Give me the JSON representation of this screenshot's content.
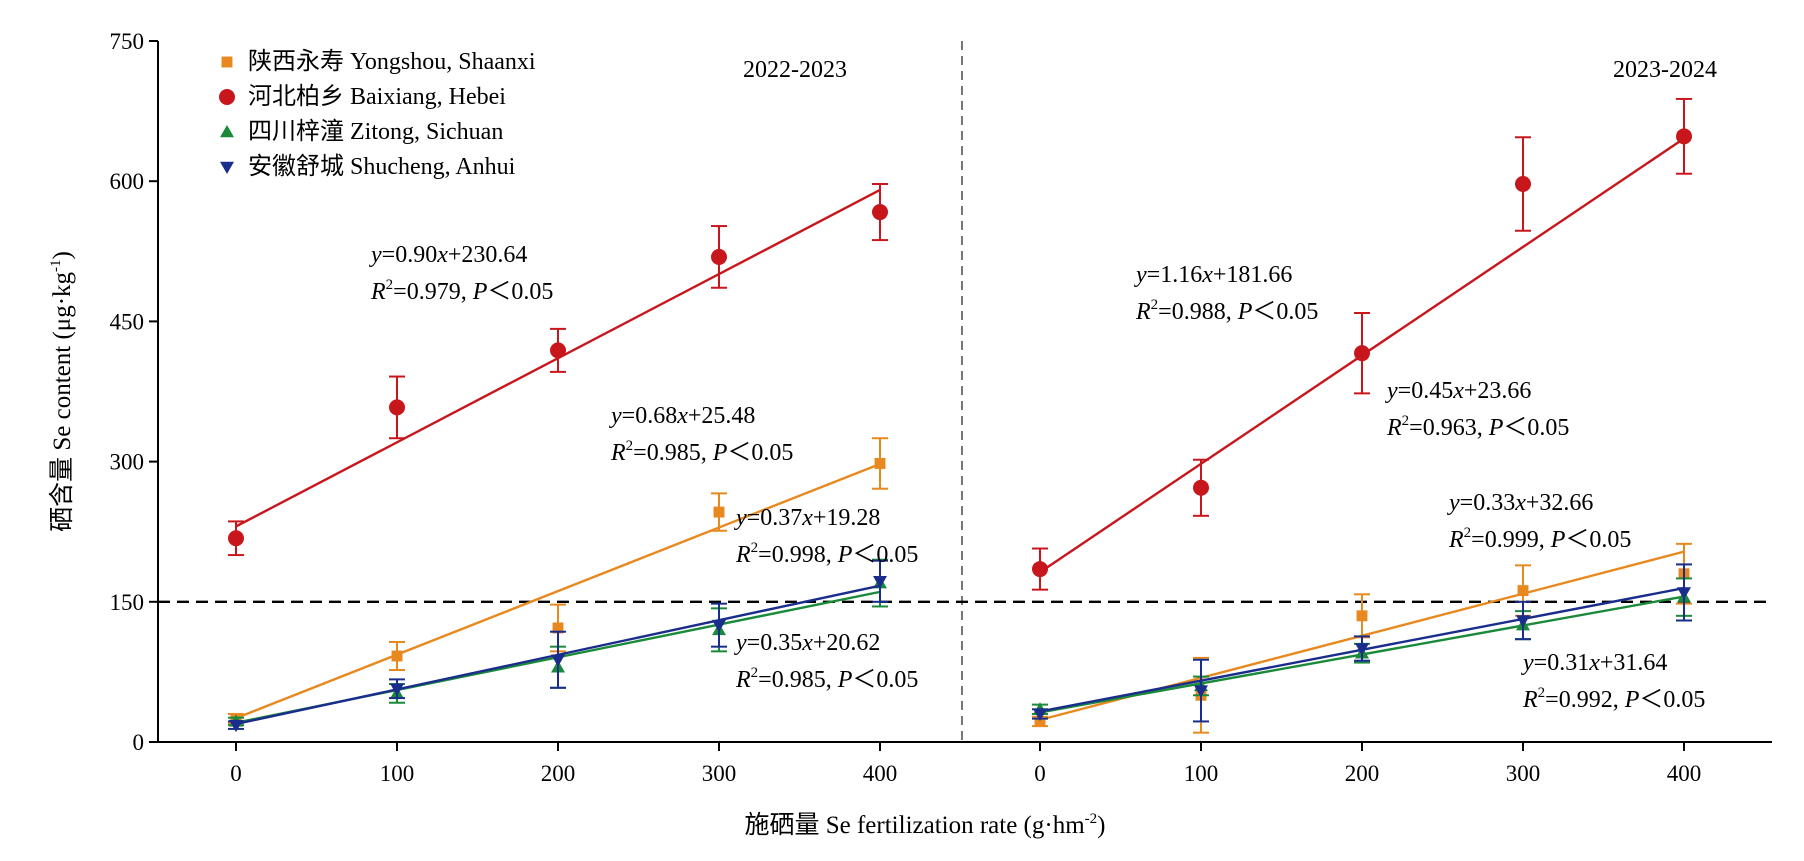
{
  "chart_data": {
    "type": "scatter",
    "ylabel": "硒含量 Se content (μg·kg",
    "ylabel_sup": "-1",
    "ylabel_close": ")",
    "xlabel": "施硒量 Se fertilization rate (g·hm",
    "xlabel_sup": "-2",
    "xlabel_close": ")",
    "ylim": [
      0,
      750
    ],
    "yticks": [
      0,
      150,
      300,
      450,
      600,
      750
    ],
    "xticks": [
      0,
      100,
      200,
      300,
      400
    ],
    "reference_line": 150,
    "legend_position": "top-left",
    "legend": [
      {
        "key": "yongshou",
        "label": "陕西永寿 Yongshou, Shaanxi",
        "marker": "square"
      },
      {
        "key": "baixiang",
        "label": "河北柏乡 Baixiang, Hebei",
        "marker": "circle"
      },
      {
        "key": "zitong",
        "label": "四川梓潼 Zitong, Sichuan",
        "marker": "triangle-up"
      },
      {
        "key": "shucheng",
        "label": "安徽舒城 Shucheng, Anhui",
        "marker": "triangle-down"
      }
    ],
    "colors": {
      "yongshou": "#e8891f",
      "baixiang": "#c8161d",
      "zitong": "#1a8a3a",
      "shucheng": "#1a2d8c"
    },
    "panels": [
      {
        "period": "2022-2023",
        "x": [
          0,
          100,
          200,
          300,
          400
        ],
        "series": [
          {
            "key": "yongshou",
            "values": [
              25,
              92,
              122,
              246,
              298
            ],
            "errors": [
              5,
              15,
              25,
              20,
              27
            ],
            "fit": [
              0.68,
              25.48
            ]
          },
          {
            "key": "baixiang",
            "values": [
              218,
              358,
              419,
              519,
              567
            ],
            "errors": [
              18,
              33,
              23,
              33,
              30
            ],
            "fit": [
              0.9,
              230.64
            ]
          },
          {
            "key": "zitong",
            "values": [
              22,
              52,
              80,
              120,
              170
            ],
            "errors": [
              4,
              10,
              22,
              23,
              25
            ],
            "fit": [
              0.35,
              20.62
            ]
          },
          {
            "key": "shucheng",
            "values": [
              18,
              57,
              88,
              125,
              172
            ],
            "errors": [
              4,
              10,
              30,
              23,
              22
            ],
            "fit": [
              0.37,
              19.28
            ]
          }
        ],
        "annotations": [
          {
            "eq": "0.90",
            "b": "230.64",
            "r2": "=0.979, ",
            "p": "＜0.05"
          },
          {
            "eq": "0.68",
            "b": "25.48",
            "r2": "=0.985, ",
            "p": "＜0.05"
          },
          {
            "eq": "0.37",
            "b": "19.28",
            "r2": "=0.998, ",
            "p": "＜0.05"
          },
          {
            "eq": "0.35",
            "b": "20.62",
            "r2": "=0.985, ",
            "p": "＜0.05"
          }
        ]
      },
      {
        "period": "2023-2024",
        "x": [
          0,
          100,
          200,
          300,
          400
        ],
        "series": [
          {
            "key": "yongshou",
            "values": [
              22,
              50,
              135,
              162,
              180
            ],
            "errors": [
              5,
              40,
              23,
              27,
              32
            ],
            "fit": [
              0.45,
              23.66
            ]
          },
          {
            "key": "baixiang",
            "values": [
              185,
              272,
              416,
              597,
              648
            ],
            "errors": [
              22,
              30,
              43,
              50,
              40
            ],
            "fit": [
              1.16,
              181.66
            ]
          },
          {
            "key": "zitong",
            "values": [
              35,
              60,
              95,
              125,
              155
            ],
            "errors": [
              5,
              10,
              10,
              15,
              20
            ],
            "fit": [
              0.31,
              31.64
            ]
          },
          {
            "key": "shucheng",
            "values": [
              30,
              55,
              100,
              130,
              160
            ],
            "errors": [
              5,
              33,
              13,
              20,
              30
            ],
            "fit": [
              0.33,
              32.66
            ]
          }
        ],
        "annotations": [
          {
            "eq": "1.16",
            "b": "181.66",
            "r2": "=0.988, ",
            "p": "＜0.05"
          },
          {
            "eq": "0.45",
            "b": "23.66",
            "r2": "=0.963, ",
            "p": "＜0.05"
          },
          {
            "eq": "0.33",
            "b": "32.66",
            "r2": "=0.999, ",
            "p": "＜0.05"
          },
          {
            "eq": "0.31",
            "b": "31.64",
            "r2": "=0.992, ",
            "p": "＜0.05"
          }
        ]
      }
    ]
  }
}
